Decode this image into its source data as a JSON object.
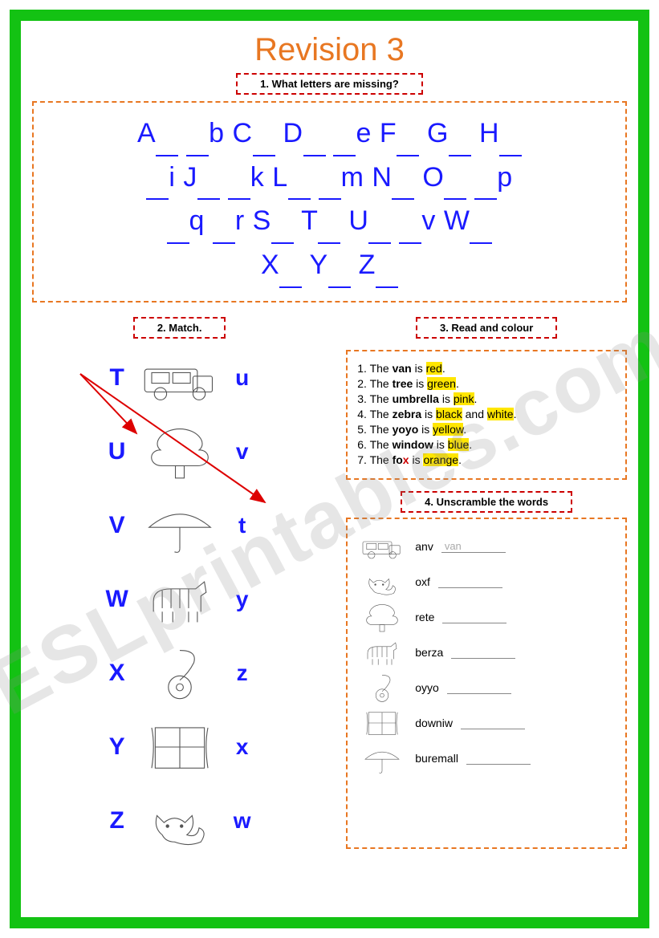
{
  "title": "Revision 3",
  "colors": {
    "frame": "#13c213",
    "accent": "#e87722",
    "letters": "#1a1aff",
    "labelBorder": "#c00",
    "highlight": "#ffe600"
  },
  "section1": {
    "label": "1. What letters are missing?",
    "lines": [
      "A__ __b C__ D__ __e F__ G__ H__",
      "__i J__ __k L__ __m N__ O__ __p",
      "__q __r S__ T__ U__ __v W__",
      "X__ Y__ Z__"
    ]
  },
  "section2": {
    "label": "2. Match.",
    "leftLetters": [
      "T",
      "U",
      "V",
      "W",
      "X",
      "Y",
      "Z"
    ],
    "rightLetters": [
      "u",
      "v",
      "t",
      "y",
      "z",
      "x",
      "w"
    ],
    "pictures": [
      "van",
      "tree",
      "umbrella",
      "zebra",
      "yoyo",
      "window",
      "fox"
    ],
    "arrows": [
      {
        "from": "T",
        "to": "tree"
      },
      {
        "from": "T",
        "to": "t"
      }
    ]
  },
  "section3": {
    "label": "3. Read and colour",
    "items": [
      {
        "n": "1",
        "pre": "The ",
        "word": "van",
        "mid": " is ",
        "colors": [
          "red"
        ],
        "post": "."
      },
      {
        "n": "2",
        "pre": "The ",
        "word": "tree",
        "mid": " is ",
        "colors": [
          "green"
        ],
        "post": "."
      },
      {
        "n": "3",
        "pre": "The ",
        "word": "umbrella",
        "mid": " is ",
        "colors": [
          "pink"
        ],
        "post": "."
      },
      {
        "n": "4",
        "pre": "The ",
        "word": "zebra",
        "mid": " is ",
        "colors": [
          "black",
          "white"
        ],
        "join": " and ",
        "post": "."
      },
      {
        "n": "5",
        "pre": "The ",
        "word": "yoyo",
        "mid": " is ",
        "colors": [
          "yellow"
        ],
        "post": "."
      },
      {
        "n": "6",
        "pre": "The ",
        "word": "window",
        "mid": " is ",
        "colors": [
          "blue"
        ],
        "post": "."
      },
      {
        "n": "7",
        "pre": "The ",
        "word": "fox",
        "redX": true,
        "mid": " is ",
        "colors": [
          "orange"
        ],
        "post": "."
      }
    ]
  },
  "section4": {
    "label": "4. Unscramble the words",
    "items": [
      {
        "pic": "van",
        "scramble": "anv",
        "answer": "van"
      },
      {
        "pic": "fox",
        "scramble": "oxf",
        "answer": ""
      },
      {
        "pic": "tree",
        "scramble": "rete",
        "answer": ""
      },
      {
        "pic": "zebra",
        "scramble": "berza",
        "answer": ""
      },
      {
        "pic": "yoyo",
        "scramble": "oyyo",
        "answer": ""
      },
      {
        "pic": "window",
        "scramble": "downiw",
        "answer": ""
      },
      {
        "pic": "umbrella",
        "scramble": "buremall",
        "answer": ""
      }
    ]
  },
  "watermark": "ESLprintables.com"
}
